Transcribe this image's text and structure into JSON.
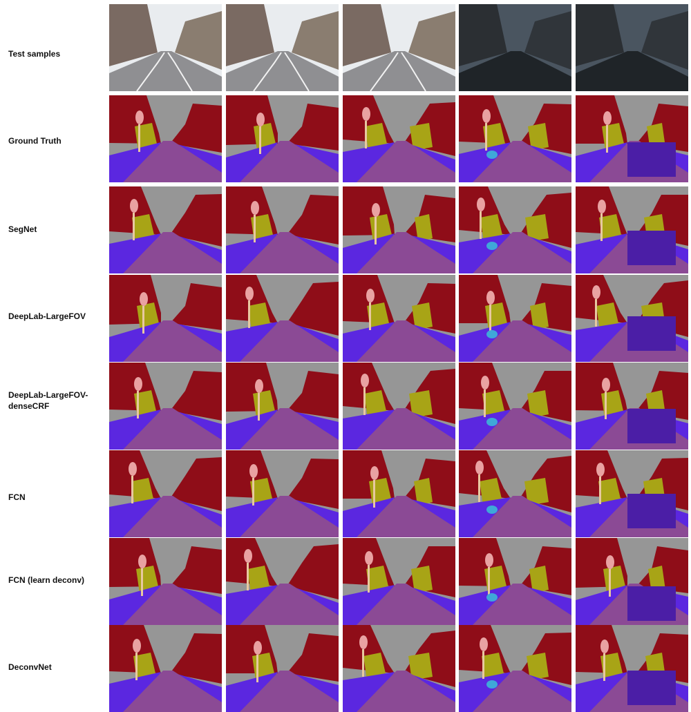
{
  "rows": [
    {
      "label": "Test samples",
      "kind": "photo"
    },
    {
      "label": "Ground Truth",
      "kind": "seg"
    },
    {
      "label": "SegNet",
      "kind": "seg"
    },
    {
      "label": "DeepLab-LargeFOV",
      "kind": "seg"
    },
    {
      "label": "DeepLab-LargeFOV-\ndenseCRF",
      "kind": "seg"
    },
    {
      "label": "FCN",
      "kind": "seg"
    },
    {
      "label": "FCN (learn deconv)",
      "kind": "seg"
    },
    {
      "label": "DeconvNet",
      "kind": "seg"
    }
  ],
  "columns": 5,
  "colors": {
    "sky": "#969696",
    "building": "#8f0d18",
    "tree": "#a8a416",
    "road": "#8b4a95",
    "sidewalk": "#5b27e0",
    "car": "#4b1ea6",
    "pole": "#e8c8a0",
    "sign": "#e9a2a2",
    "pedestrian": "#3fa8d8",
    "fence": "#5a4f8c"
  }
}
